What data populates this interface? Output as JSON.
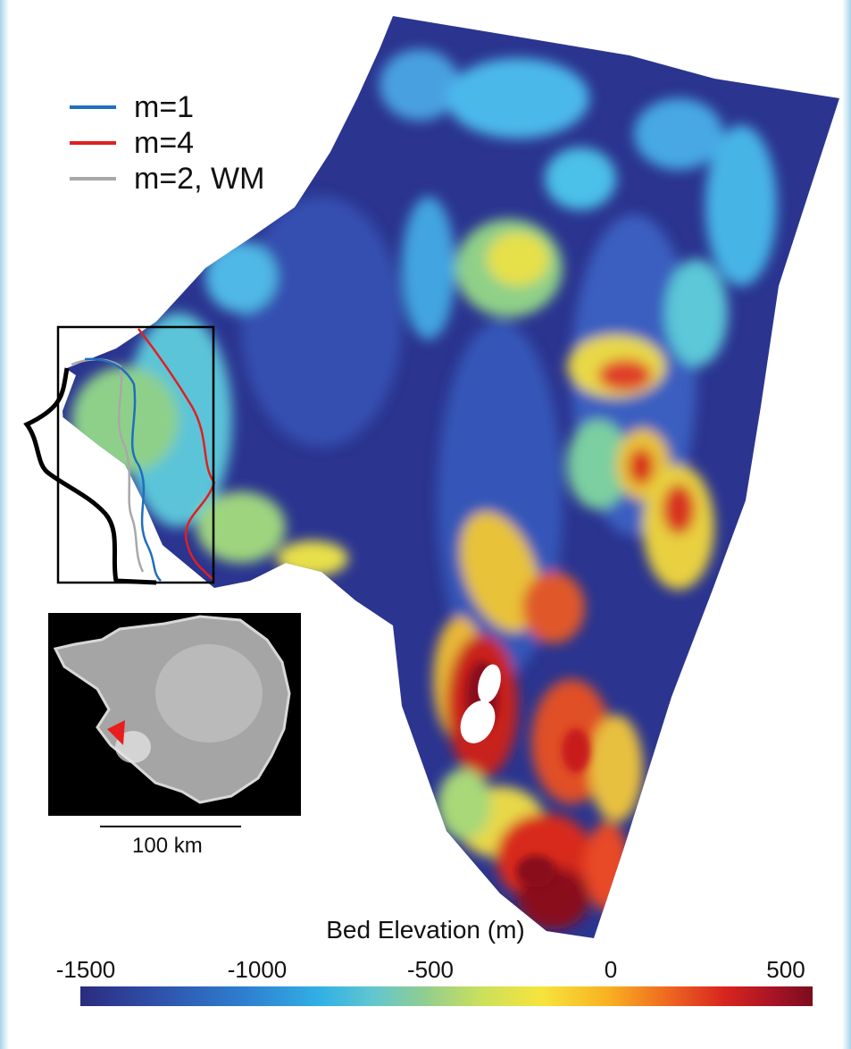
{
  "legend": {
    "items": [
      {
        "label": "m=1",
        "color": "#1f6fbf"
      },
      {
        "label": "m=4",
        "color": "#e02020"
      },
      {
        "label": "m=2, WM",
        "color": "#a8a8a8"
      }
    ]
  },
  "scale_bar": {
    "label": "100 km"
  },
  "colorbar": {
    "title": "Bed Elevation (m)",
    "ticks": [
      "-1500",
      "-1000",
      "-500",
      "0",
      "500"
    ]
  },
  "colors": {
    "deep": "#2b3590",
    "mid_blue": "#3a6ed0",
    "cyan": "#4cc0e8",
    "yellow": "#eeee40",
    "red": "#d81f1f",
    "dark_red": "#8a0f1a"
  }
}
